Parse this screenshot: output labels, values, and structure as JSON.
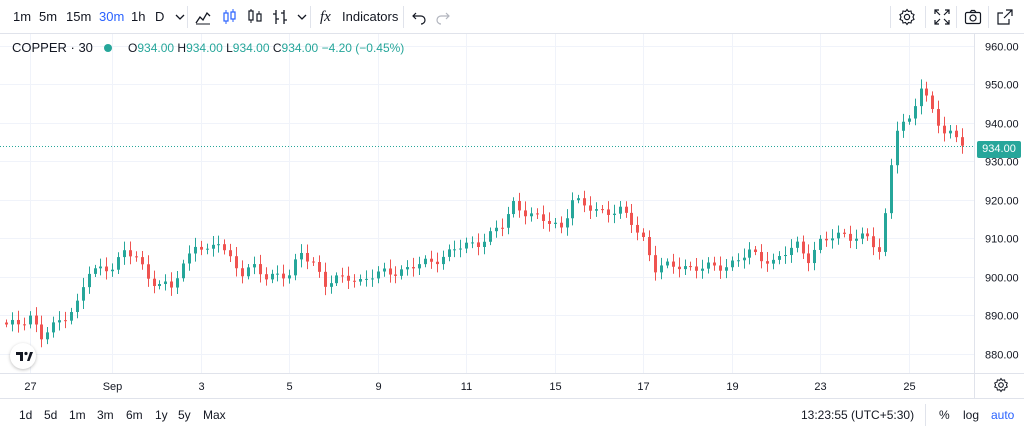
{
  "toolbar": {
    "intervals": [
      "1m",
      "5m",
      "15m",
      "30m",
      "1h",
      "D"
    ],
    "active_interval": "30m",
    "indicators_label": "Indicators",
    "fx_label": "fx",
    "icons": [
      "chevron-down-icon",
      "area-chart-icon",
      "candles-icon",
      "bars-icon",
      "compare-icon",
      "undo-icon",
      "redo-icon",
      "settings-icon",
      "fullscreen-icon",
      "camera-icon",
      "popout-icon"
    ]
  },
  "legend": {
    "symbol": "COPPER · 30",
    "o_label": "O",
    "o_value": "934.00",
    "h_label": "H",
    "h_value": "934.00",
    "l_label": "L",
    "l_value": "934.00",
    "c_label": "C",
    "c_value": "934.00",
    "change": "−4.20 (−0.45%)"
  },
  "colors": {
    "up": "#26a69a",
    "down": "#ef5350",
    "accent": "#2962ff",
    "grid": "#f0f3fa"
  },
  "bottombar": {
    "ranges": [
      "1d",
      "5d",
      "1m",
      "3m",
      "6m",
      "1y",
      "5y",
      "Max"
    ],
    "time": "13:23:55 (UTC+5:30)",
    "percent": "%",
    "log": "log",
    "auto": "auto"
  },
  "chart_data": {
    "type": "candlestick",
    "title": "COPPER · 30",
    "last_price": "934.00",
    "ylim": [
      875,
      963
    ],
    "y_ticks": [
      "960.00",
      "950.00",
      "940.00",
      "930.00",
      "920.00",
      "910.00",
      "900.00",
      "890.00",
      "880.00"
    ],
    "x_ticks": [
      "27",
      "Sep",
      "3",
      "5",
      "9",
      "11",
      "15",
      "17",
      "19",
      "23",
      "25"
    ],
    "x_tick_index": [
      4,
      18,
      33,
      48,
      63,
      78,
      93,
      108,
      123,
      138,
      153
    ],
    "grid": true,
    "path": [
      [
        0,
        887
      ],
      [
        2,
        888
      ],
      [
        4,
        890
      ],
      [
        6,
        884
      ],
      [
        8,
        887
      ],
      [
        10,
        890
      ],
      [
        12,
        893
      ],
      [
        14,
        901
      ],
      [
        16,
        902
      ],
      [
        18,
        903
      ],
      [
        20,
        906
      ],
      [
        22,
        905
      ],
      [
        24,
        900
      ],
      [
        26,
        898
      ],
      [
        28,
        897
      ],
      [
        30,
        903
      ],
      [
        32,
        909
      ],
      [
        34,
        906
      ],
      [
        36,
        909
      ],
      [
        38,
        905
      ],
      [
        40,
        901
      ],
      [
        42,
        902
      ],
      [
        44,
        900
      ],
      [
        46,
        901
      ],
      [
        48,
        900
      ],
      [
        50,
        906
      ],
      [
        52,
        904
      ],
      [
        54,
        898
      ],
      [
        56,
        899
      ],
      [
        58,
        900
      ],
      [
        60,
        899
      ],
      [
        64,
        901
      ],
      [
        68,
        902
      ],
      [
        72,
        904
      ],
      [
        76,
        907
      ],
      [
        80,
        909
      ],
      [
        84,
        913
      ],
      [
        86,
        919
      ],
      [
        88,
        917
      ],
      [
        90,
        915
      ],
      [
        94,
        913
      ],
      [
        96,
        920
      ],
      [
        98,
        918
      ],
      [
        102,
        917
      ],
      [
        104,
        917
      ],
      [
        106,
        914
      ],
      [
        108,
        910
      ],
      [
        110,
        902
      ],
      [
        114,
        903
      ],
      [
        118,
        902
      ],
      [
        122,
        903
      ],
      [
        126,
        906
      ],
      [
        130,
        904
      ],
      [
        134,
        908
      ],
      [
        136,
        905
      ],
      [
        138,
        909
      ],
      [
        142,
        911
      ],
      [
        146,
        910
      ],
      [
        148,
        906
      ],
      [
        149,
        916
      ],
      [
        150,
        930
      ],
      [
        151,
        939
      ],
      [
        153,
        940
      ],
      [
        155,
        949
      ],
      [
        157,
        944
      ],
      [
        159,
        937
      ],
      [
        161,
        936
      ],
      [
        162,
        934
      ]
    ]
  }
}
